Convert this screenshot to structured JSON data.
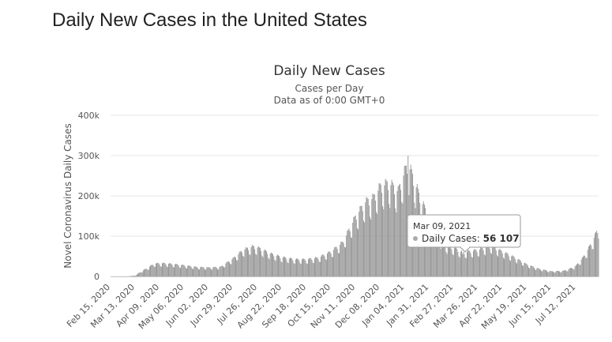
{
  "page": {
    "heading": "Daily New Cases in the United States"
  },
  "tooltip": {
    "date": "Mar 09, 2021",
    "series": "Daily Cases: ",
    "value": "56 107"
  },
  "chart_data": {
    "type": "bar",
    "title": "Daily New Cases",
    "subtitle": "Cases per Day",
    "subtitle2": "Data as of 0:00 GMT+0",
    "xlabel": "",
    "ylabel": "Novel Coronavirus Daily Cases",
    "ylim": [
      0,
      400000
    ],
    "yticks": [
      0,
      100000,
      200000,
      300000,
      400000
    ],
    "ytick_labels": [
      "0",
      "100k",
      "200k",
      "300k",
      "400k"
    ],
    "x_start": "2020-02-15",
    "x_end": "2021-08-06",
    "xtick_labels": [
      "Feb 15, 2020",
      "Mar 13, 2020",
      "Apr 09, 2020",
      "May 06, 2020",
      "Jun 02, 2020",
      "Jun 29, 2020",
      "Jul 26, 2020",
      "Aug 22, 2020",
      "Sep 18, 2020",
      "Oct 15, 2020",
      "Nov 11, 2020",
      "Dec 08, 2020",
      "Jan 04, 2021",
      "Jan 31, 2021",
      "Feb 27, 2021",
      "Mar 26, 2021",
      "Apr 22, 2021",
      "May 19, 2021",
      "Jun 15, 2021",
      "Jul 12, 2021"
    ],
    "grid": true,
    "legend": "none",
    "bar_color": "#909090",
    "trend_points": [
      [
        "2020-02-15",
        0
      ],
      [
        "2020-03-05",
        200
      ],
      [
        "2020-03-13",
        2000
      ],
      [
        "2020-03-20",
        12000
      ],
      [
        "2020-03-27",
        20000
      ],
      [
        "2020-04-03",
        30000
      ],
      [
        "2020-04-12",
        31000
      ],
      [
        "2020-04-24",
        29000
      ],
      [
        "2020-05-06",
        26000
      ],
      [
        "2020-05-20",
        22000
      ],
      [
        "2020-06-02",
        21000
      ],
      [
        "2020-06-15",
        22000
      ],
      [
        "2020-06-29",
        42000
      ],
      [
        "2020-07-10",
        62000
      ],
      [
        "2020-07-20",
        70000
      ],
      [
        "2020-07-26",
        68000
      ],
      [
        "2020-08-10",
        53000
      ],
      [
        "2020-08-22",
        45000
      ],
      [
        "2020-09-05",
        40000
      ],
      [
        "2020-09-18",
        40000
      ],
      [
        "2020-10-01",
        44000
      ],
      [
        "2020-10-15",
        58000
      ],
      [
        "2020-10-28",
        80000
      ],
      [
        "2020-11-11",
        140000
      ],
      [
        "2020-11-22",
        175000
      ],
      [
        "2020-12-01",
        185000
      ],
      [
        "2020-12-08",
        210000
      ],
      [
        "2020-12-18",
        220000
      ],
      [
        "2020-12-28",
        200000
      ],
      [
        "2021-01-04",
        245000
      ],
      [
        "2021-01-08",
        265000
      ],
      [
        "2021-01-14",
        230000
      ],
      [
        "2021-01-22",
        180000
      ],
      [
        "2021-01-31",
        140000
      ],
      [
        "2021-02-10",
        95000
      ],
      [
        "2021-02-20",
        72000
      ],
      [
        "2021-02-27",
        68000
      ],
      [
        "2021-03-09",
        56107
      ],
      [
        "2021-03-26",
        62000
      ],
      [
        "2021-04-10",
        72000
      ],
      [
        "2021-04-22",
        58000
      ],
      [
        "2021-05-05",
        45000
      ],
      [
        "2021-05-19",
        28000
      ],
      [
        "2021-06-01",
        18000
      ],
      [
        "2021-06-15",
        12000
      ],
      [
        "2021-06-28",
        13000
      ],
      [
        "2021-07-05",
        18000
      ],
      [
        "2021-07-12",
        25000
      ],
      [
        "2021-07-20",
        45000
      ],
      [
        "2021-07-27",
        70000
      ],
      [
        "2021-08-03",
        100000
      ],
      [
        "2021-08-06",
        115000
      ]
    ],
    "peak": [
      "2021-01-08",
      300000
    ],
    "highlight": {
      "date": "2021-03-09",
      "value": 56107
    }
  }
}
